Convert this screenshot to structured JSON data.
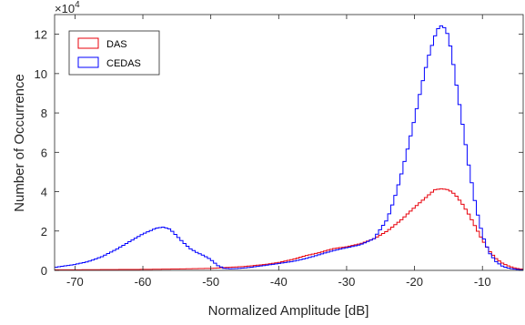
{
  "chart_data": {
    "type": "line",
    "title": "",
    "xlabel": "Normalized Amplitude [dB]",
    "ylabel": "Number of Occurrence",
    "y_multiplier_label": "×10",
    "y_multiplier_exponent": "4",
    "xlim": [
      -73,
      -4
    ],
    "ylim": [
      0,
      13
    ],
    "xticks": [
      -70,
      -60,
      -50,
      -40,
      -30,
      -20,
      -10
    ],
    "yticks": [
      0,
      2,
      4,
      6,
      8,
      10,
      12
    ],
    "grid": false,
    "legend_position": "top-left",
    "series": [
      {
        "name": "DAS",
        "color": "#e8000b",
        "style": "stairs",
        "x": [
          -73,
          -70,
          -65,
          -60,
          -55,
          -50,
          -45,
          -42,
          -40,
          -38,
          -36,
          -34,
          -32,
          -30,
          -28,
          -26,
          -24,
          -22,
          -20,
          -18,
          -17,
          -16,
          -15,
          -14,
          -13,
          -12,
          -11,
          -10,
          -9,
          -8,
          -7,
          -6,
          -5,
          -4
        ],
        "values": [
          0.03,
          0.03,
          0.04,
          0.05,
          0.07,
          0.1,
          0.2,
          0.3,
          0.4,
          0.55,
          0.75,
          0.9,
          1.1,
          1.2,
          1.35,
          1.6,
          2.0,
          2.55,
          3.2,
          3.8,
          4.1,
          4.15,
          4.1,
          3.85,
          3.4,
          2.85,
          2.2,
          1.55,
          1.0,
          0.6,
          0.35,
          0.2,
          0.1,
          0.05
        ]
      },
      {
        "name": "CEDAS",
        "color": "#0000ff",
        "style": "stairs",
        "x": [
          -73,
          -70,
          -68,
          -66,
          -64,
          -62,
          -60,
          -58,
          -57,
          -56,
          -55,
          -54,
          -53,
          -52,
          -51,
          -50,
          -49,
          -48,
          -47,
          -45,
          -42,
          -40,
          -38,
          -36,
          -34,
          -32,
          -30,
          -28,
          -26,
          -24,
          -23,
          -22,
          -21,
          -20,
          -19,
          -18,
          -17,
          -16.5,
          -16,
          -15.5,
          -15,
          -14.5,
          -14,
          -13,
          -12,
          -11,
          -10,
          -9,
          -8,
          -7,
          -6,
          -5,
          -4
        ],
        "values": [
          0.15,
          0.3,
          0.45,
          0.7,
          1.05,
          1.45,
          1.85,
          2.15,
          2.2,
          2.1,
          1.75,
          1.4,
          1.1,
          0.9,
          0.75,
          0.55,
          0.25,
          0.1,
          0.08,
          0.12,
          0.25,
          0.35,
          0.45,
          0.6,
          0.8,
          1.0,
          1.15,
          1.3,
          1.6,
          2.6,
          3.6,
          4.8,
          6.2,
          7.7,
          9.3,
          10.8,
          11.9,
          12.3,
          12.45,
          12.3,
          11.9,
          11.0,
          9.8,
          7.6,
          5.3,
          3.3,
          1.8,
          0.9,
          0.45,
          0.2,
          0.1,
          0.05,
          0.02
        ]
      }
    ]
  }
}
